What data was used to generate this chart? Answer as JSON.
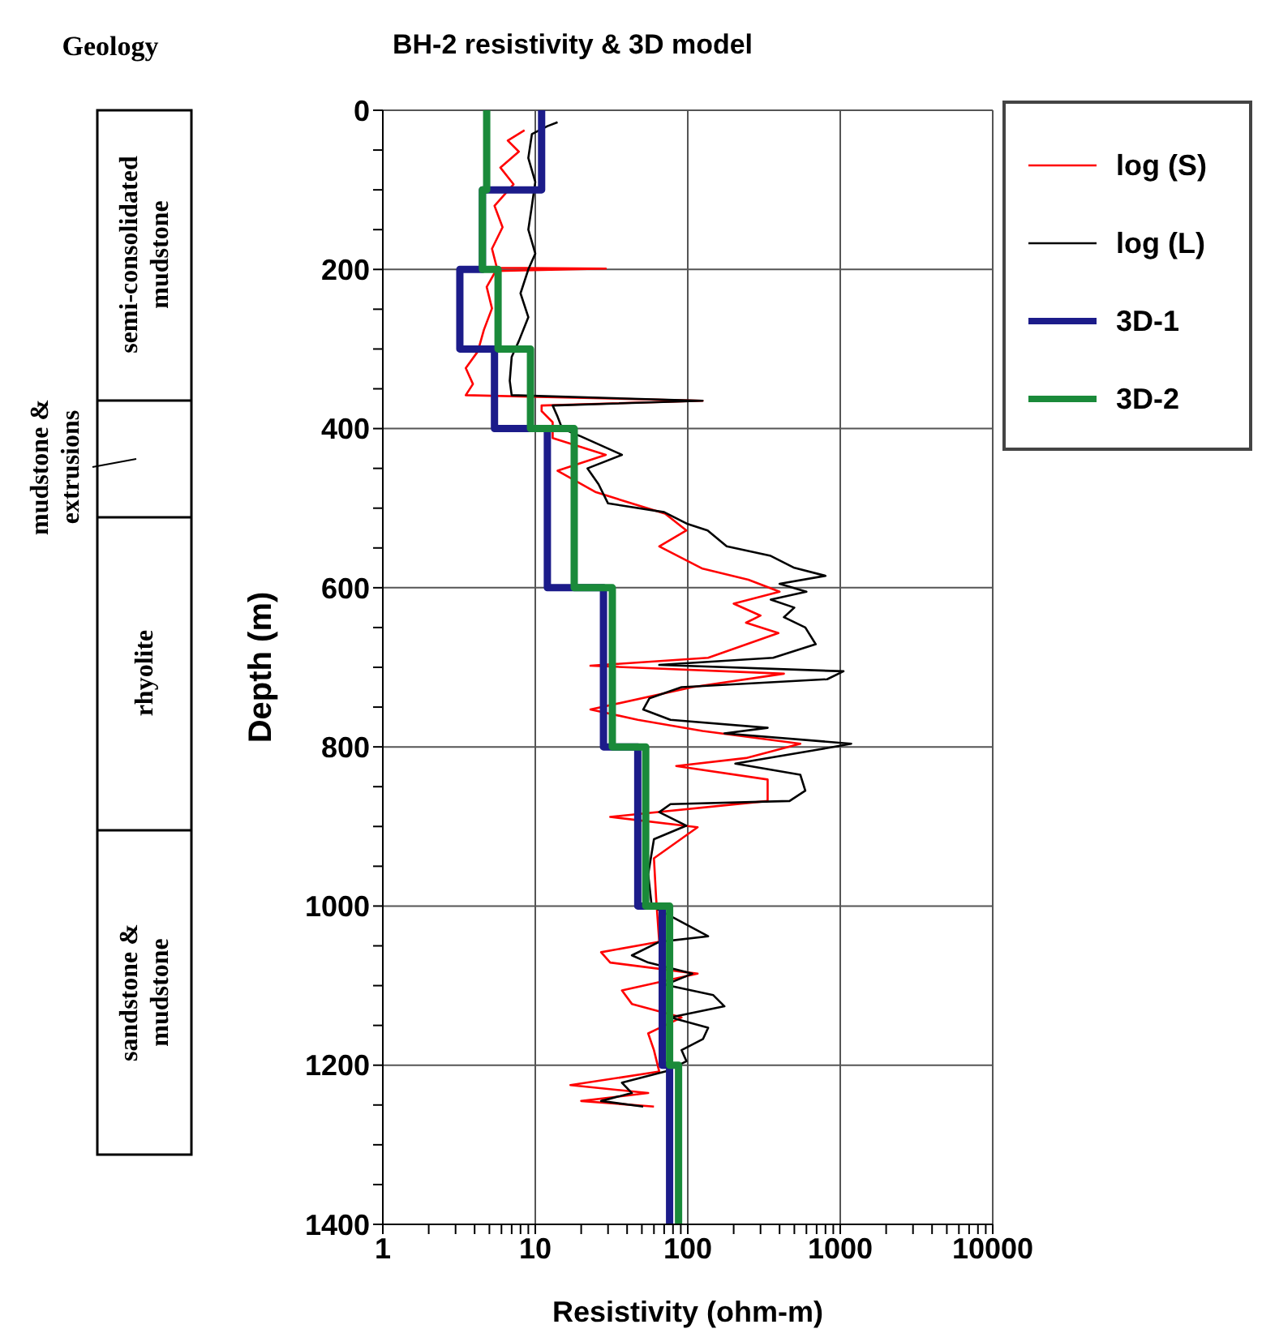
{
  "chart_data": [
    {
      "type": "other",
      "title": "Geology",
      "annotations": [
        "semi-consolidated mudstone",
        "mudstone & extrusions",
        "rhyolite",
        "sandstone & mudstone"
      ]
    },
    {
      "type": "line",
      "title": "BH-2 resistivity & 3D model",
      "xlabel": "Resistivity (ohm-m)",
      "ylabel": "Depth (m)",
      "log": "x",
      "xlim": [
        1,
        10000
      ],
      "xticks": [
        1,
        {
          "value": 2,
          "label": null
        },
        {
          "value": 3,
          "label": null
        },
        {
          "value": 4,
          "label": null
        },
        {
          "value": 5,
          "label": null
        },
        {
          "value": 6,
          "label": null
        },
        {
          "value": 7,
          "label": null
        },
        {
          "value": 8,
          "label": null
        },
        {
          "value": 9,
          "label": null
        },
        10,
        {
          "value": 20,
          "label": null
        },
        {
          "value": 30,
          "label": null
        },
        {
          "value": 40,
          "label": null
        },
        {
          "value": 50,
          "label": null
        },
        {
          "value": 60,
          "label": null
        },
        {
          "value": 70,
          "label": null
        },
        {
          "value": 80,
          "label": null
        },
        {
          "value": 90,
          "label": null
        },
        100,
        {
          "value": 200,
          "label": null
        },
        {
          "value": 300,
          "label": null
        },
        {
          "value": 400,
          "label": null
        },
        {
          "value": 500,
          "label": null
        },
        {
          "value": 600,
          "label": null
        },
        {
          "value": 700,
          "label": null
        },
        {
          "value": 800,
          "label": null
        },
        {
          "value": 900,
          "label": null
        },
        1000,
        {
          "value": 2000,
          "label": null
        },
        {
          "value": 3000,
          "label": null
        },
        {
          "value": 4000,
          "label": null
        },
        {
          "value": 5000,
          "label": null
        },
        {
          "value": 6000,
          "label": null
        },
        {
          "value": 7000,
          "label": null
        },
        {
          "value": 8000,
          "label": null
        },
        {
          "value": 9000,
          "label": null
        },
        10000
      ],
      "ylim": [
        1400,
        0
      ],
      "yticks": [
        0,
        {
          "value": 50,
          "label": null
        },
        {
          "value": 100,
          "label": null
        },
        {
          "value": 150,
          "label": null
        },
        200,
        {
          "value": 250,
          "label": null
        },
        {
          "value": 300,
          "label": null
        },
        {
          "value": 350,
          "label": null
        },
        400,
        {
          "value": 450,
          "label": null
        },
        {
          "value": 500,
          "label": null
        },
        {
          "value": 550,
          "label": null
        },
        600,
        {
          "value": 650,
          "label": null
        },
        {
          "value": 700,
          "label": null
        },
        {
          "value": 750,
          "label": null
        },
        800,
        {
          "value": 850,
          "label": null
        },
        {
          "value": 900,
          "label": null
        },
        {
          "value": 950,
          "label": null
        },
        1000,
        {
          "value": 1050,
          "label": null
        },
        {
          "value": 1100,
          "label": null
        },
        {
          "value": 1150,
          "label": null
        },
        1200,
        {
          "value": 1250,
          "label": null
        },
        {
          "value": 1300,
          "label": null
        },
        {
          "value": 1350,
          "label": null
        },
        1400
      ],
      "grid": true,
      "legend": "top right",
      "marker": "none",
      "series": [
        {
          "name": "log (S)",
          "color": "#ff0000",
          "x": [
            8.5,
            6.6,
            7.8,
            5.9,
            7.2,
            5.4,
            6.1,
            5.2,
            5.6,
            29,
            5.5,
            4.8,
            5.2,
            4.6,
            4.2,
            3.5,
            3.9,
            3.5,
            125,
            11,
            11,
            13,
            13,
            29,
            14,
            25,
            71,
            98,
            65,
            125,
            250,
            400,
            200,
            300,
            241,
            393,
            136,
            23,
            427,
            107,
            23,
            47,
            125,
            547,
            241,
            84,
            334,
            334,
            31,
            116,
            60,
            62,
            65,
            27,
            31,
            116,
            37,
            43,
            91,
            55,
            60,
            65,
            17,
            55,
            20,
            60
          ],
          "values": [
            25,
            38,
            52,
            72,
            93,
            120,
            147,
            174,
            198,
            199,
            202,
            222,
            249,
            276,
            303,
            324,
            344,
            358,
            365,
            371,
            378,
            392,
            412,
            433,
            453,
            480,
            507,
            528,
            548,
            576,
            590,
            605,
            620,
            635,
            644,
            657,
            688,
            698,
            708,
            725,
            753,
            766,
            780,
            796,
            814,
            824,
            841,
            868,
            888,
            901,
            940,
            990,
            1045,
            1058,
            1071,
            1085,
            1106,
            1123,
            1140,
            1160,
            1181,
            1208,
            1225,
            1235,
            1245,
            1252
          ]
        },
        {
          "name": "log (L)",
          "color": "#000000",
          "x": [
            14,
            12,
            9.5,
            9,
            10,
            9.5,
            9,
            10,
            9,
            8,
            9,
            7.8,
            7,
            6.8,
            7,
            125,
            13,
            14,
            15,
            20,
            37,
            22,
            26,
            30,
            70,
            100,
            135,
            180,
            350,
            500,
            800,
            400,
            600,
            350,
            500,
            427,
            590,
            690,
            363,
            65,
            1050,
            820,
            91,
            56,
            51,
            77,
            334,
            174,
            1180,
            690,
            205,
            547,
            590,
            465,
            77,
            65,
            98,
            60,
            55,
            58,
            136,
            65,
            43,
            55,
            107,
            71,
            147,
            174,
            77,
            136,
            126,
            91,
            98,
            71,
            37,
            43,
            27,
            51
          ],
          "values": [
            15,
            20,
            30,
            60,
            90,
            120,
            150,
            180,
            200,
            230,
            260,
            290,
            310,
            340,
            358,
            365,
            371,
            385,
            400,
            410,
            433,
            450,
            470,
            494,
            505,
            520,
            528,
            548,
            560,
            575,
            585,
            595,
            605,
            615,
            625,
            637,
            650,
            671,
            688,
            697,
            705,
            715,
            725,
            739,
            753,
            766,
            776,
            783,
            796,
            804,
            821,
            835,
            855,
            868,
            872,
            882,
            899,
            916,
            960,
            1000,
            1038,
            1045,
            1062,
            1071,
            1085,
            1099,
            1112,
            1126,
            1140,
            1153,
            1167,
            1181,
            1195,
            1208,
            1222,
            1235,
            1245,
            1252
          ]
        },
        {
          "name": "3D-1",
          "type": "step",
          "color": "#1c1c8a",
          "x": [
            11,
            11,
            4.5,
            4.5,
            3.2,
            3.2,
            5.4,
            5.4,
            12,
            12,
            28,
            28,
            47,
            47,
            68,
            68,
            76,
            76
          ],
          "values": [
            0,
            100,
            100,
            200,
            200,
            300,
            300,
            400,
            400,
            600,
            600,
            800,
            800,
            1000,
            1000,
            1200,
            1200,
            1400
          ]
        },
        {
          "name": "3D-2",
          "type": "step",
          "color": "#1a8a3a",
          "x": [
            4.8,
            4.8,
            4.5,
            4.5,
            5.7,
            5.7,
            9.3,
            9.3,
            18,
            18,
            32,
            32,
            53,
            53,
            76,
            76,
            87,
            87
          ],
          "values": [
            0,
            100,
            100,
            200,
            200,
            300,
            300,
            400,
            400,
            600,
            600,
            800,
            800,
            1000,
            1000,
            1200,
            1200,
            1400
          ]
        }
      ]
    }
  ]
}
